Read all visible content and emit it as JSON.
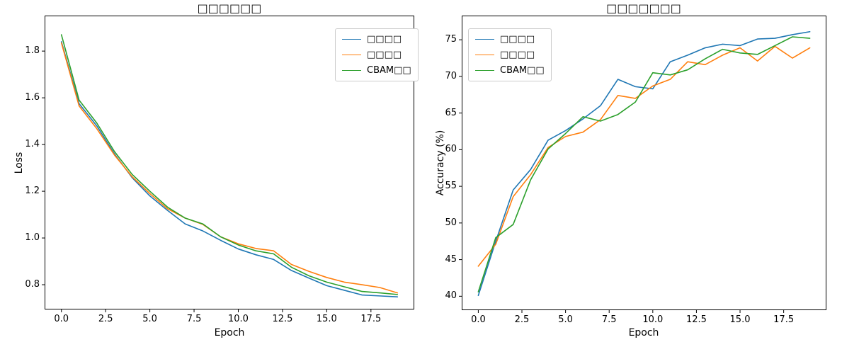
{
  "figure": {
    "background": "#ffffff"
  },
  "chart_data": [
    {
      "type": "line",
      "title": "□□□□□□",
      "xlabel": "Epoch",
      "ylabel": "Loss",
      "grid": false,
      "legend_position": "upper right",
      "xlim": [
        -0.95,
        19.95
      ],
      "ylim": [
        0.694,
        1.952
      ],
      "xticks": {
        "values": [
          0,
          2.5,
          5,
          7.5,
          10,
          12.5,
          15,
          17.5
        ],
        "labels": [
          "0.0",
          "2.5",
          "5.0",
          "7.5",
          "10.0",
          "12.5",
          "15.0",
          "17.5"
        ]
      },
      "yticks": {
        "values": [
          0.8,
          1.0,
          1.2,
          1.4,
          1.6,
          1.8
        ],
        "labels": [
          "0.8",
          "1.0",
          "1.2",
          "1.4",
          "1.6",
          "1.8"
        ]
      },
      "x": [
        0,
        1,
        2,
        3,
        4,
        5,
        6,
        7,
        8,
        9,
        10,
        11,
        12,
        13,
        14,
        15,
        16,
        17,
        18,
        19
      ],
      "series": [
        {
          "name": "□□□□",
          "color": "#1f77b4",
          "values": [
            1.84,
            1.575,
            1.48,
            1.36,
            1.258,
            1.18,
            1.118,
            1.06,
            1.03,
            0.99,
            0.953,
            0.928,
            0.908,
            0.861,
            0.828,
            0.796,
            0.776,
            0.756,
            0.752,
            0.748
          ]
        },
        {
          "name": "□□□□",
          "color": "#ff7f0e",
          "values": [
            1.835,
            1.565,
            1.468,
            1.355,
            1.262,
            1.19,
            1.125,
            1.085,
            1.058,
            1.005,
            0.975,
            0.955,
            0.945,
            0.887,
            0.857,
            0.831,
            0.811,
            0.8,
            0.788,
            0.765
          ]
        },
        {
          "name": "CBAM□□",
          "color": "#2ca02c",
          "values": [
            1.87,
            1.59,
            1.492,
            1.37,
            1.272,
            1.2,
            1.132,
            1.085,
            1.06,
            1.005,
            0.97,
            0.945,
            0.932,
            0.875,
            0.838,
            0.811,
            0.791,
            0.771,
            0.765,
            0.758
          ]
        }
      ]
    },
    {
      "type": "line",
      "title": "□□□□□□□",
      "xlabel": "Epoch",
      "ylabel": "Accuracy (%)",
      "grid": false,
      "legend_position": "upper left",
      "xlim": [
        -0.95,
        19.95
      ],
      "ylim": [
        38.1,
        78.3
      ],
      "xticks": {
        "values": [
          0,
          2.5,
          5,
          7.5,
          10,
          12.5,
          15,
          17.5
        ],
        "labels": [
          "0.0",
          "2.5",
          "5.0",
          "7.5",
          "10.0",
          "12.5",
          "15.0",
          "17.5"
        ]
      },
      "yticks": {
        "values": [
          40,
          45,
          50,
          55,
          60,
          65,
          70,
          75
        ],
        "labels": [
          "40",
          "45",
          "50",
          "55",
          "60",
          "65",
          "70",
          "75"
        ]
      },
      "x": [
        0,
        1,
        2,
        3,
        4,
        5,
        6,
        7,
        8,
        9,
        10,
        11,
        12,
        13,
        14,
        15,
        16,
        17,
        18,
        19
      ],
      "series": [
        {
          "name": "□□□□",
          "color": "#1f77b4",
          "values": [
            40.1,
            47.5,
            54.5,
            57.3,
            61.3,
            62.6,
            64.2,
            66.0,
            69.6,
            68.6,
            68.3,
            72.0,
            72.9,
            73.9,
            74.4,
            74.2,
            75.1,
            75.2,
            75.7,
            76.1
          ]
        },
        {
          "name": "□□□□",
          "color": "#ff7f0e",
          "values": [
            44.1,
            47.1,
            53.6,
            56.6,
            60.3,
            61.8,
            62.4,
            64.1,
            67.4,
            67.0,
            68.7,
            69.6,
            72.0,
            71.6,
            72.9,
            73.9,
            72.1,
            74.1,
            72.5,
            73.9
          ]
        },
        {
          "name": "CBAM□□",
          "color": "#2ca02c",
          "values": [
            40.6,
            48.0,
            49.8,
            55.9,
            60.1,
            62.2,
            64.5,
            63.9,
            64.8,
            66.5,
            70.5,
            70.2,
            70.9,
            72.4,
            73.7,
            73.2,
            73.0,
            74.2,
            75.4,
            75.2
          ]
        }
      ]
    }
  ]
}
